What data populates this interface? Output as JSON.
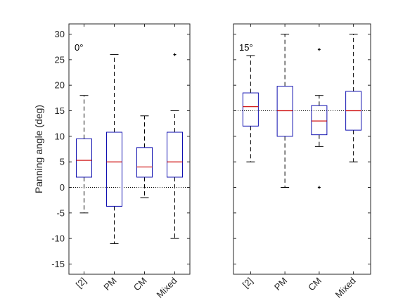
{
  "chart_data": [
    {
      "type": "box",
      "panel_label": "0°",
      "ylabel": "Panning angle (deg)",
      "ylim": [
        -17,
        32
      ],
      "yticks": [
        -15,
        -10,
        -5,
        0,
        5,
        10,
        15,
        20,
        25,
        30
      ],
      "reference_line": 0,
      "categories": [
        "[2]",
        "PM",
        "CM",
        "Mixed"
      ],
      "boxes": [
        {
          "whisker_low": -5,
          "q1": 2,
          "median": 5.3,
          "q3": 9.5,
          "whisker_high": 18,
          "outliers": []
        },
        {
          "whisker_low": -11,
          "q1": -3.7,
          "median": 5,
          "q3": 10.8,
          "whisker_high": 26,
          "outliers": []
        },
        {
          "whisker_low": -2,
          "q1": 2,
          "median": 4,
          "q3": 7.8,
          "whisker_high": 14,
          "outliers": []
        },
        {
          "whisker_low": -10,
          "q1": 2,
          "median": 5,
          "q3": 10.8,
          "whisker_high": 15,
          "outliers": [
            26
          ]
        }
      ]
    },
    {
      "type": "box",
      "panel_label": "15°",
      "ylim": [
        -17,
        32
      ],
      "reference_line": 15,
      "categories": [
        "[2]",
        "PM",
        "CM",
        "Mixed"
      ],
      "boxes": [
        {
          "whisker_low": 5,
          "q1": 12,
          "median": 15.8,
          "q3": 18.5,
          "whisker_high": 25.8,
          "outliers": []
        },
        {
          "whisker_low": 0,
          "q1": 10,
          "median": 15,
          "q3": 19.8,
          "whisker_high": 30,
          "outliers": []
        },
        {
          "whisker_low": 8,
          "q1": 10.3,
          "median": 13,
          "q3": 16,
          "whisker_high": 18,
          "outliers": [
            27,
            0
          ]
        },
        {
          "whisker_low": 5,
          "q1": 11.2,
          "median": 15,
          "q3": 18.8,
          "whisker_high": 30,
          "outliers": []
        }
      ]
    }
  ],
  "colors": {
    "box": "#1010b0",
    "median": "#cc0000",
    "whisker": "#000000",
    "axis": "#262626"
  }
}
